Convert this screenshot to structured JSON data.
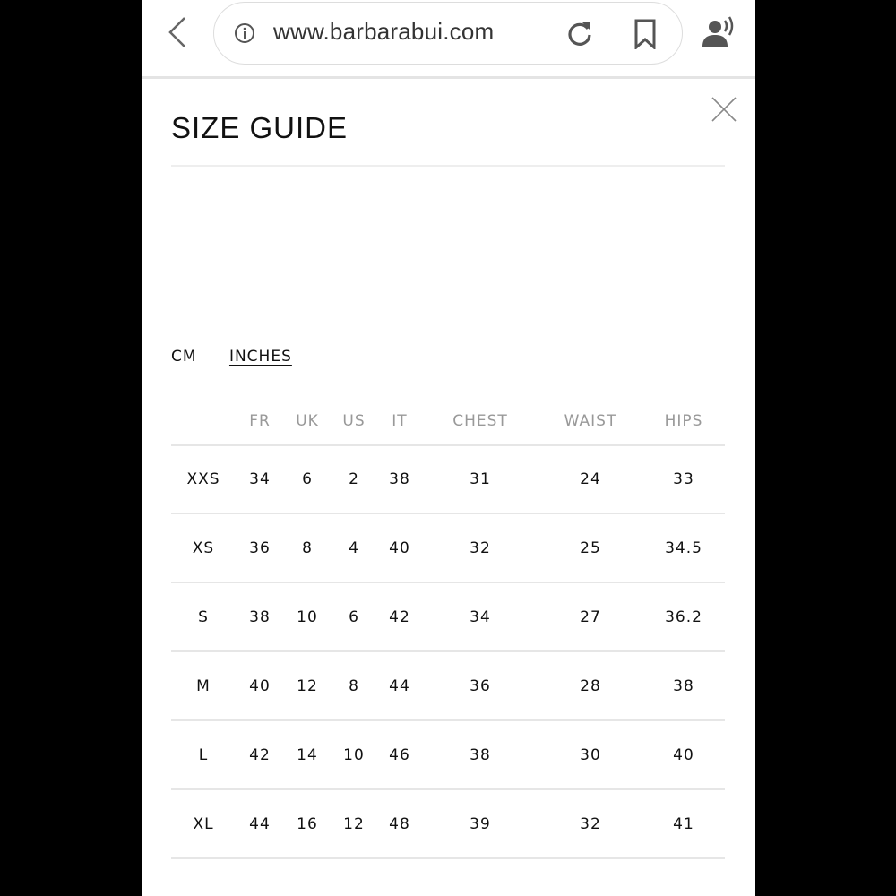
{
  "browser": {
    "url": "www.barbarabui.com",
    "icons": [
      "back-icon",
      "info-icon",
      "reload-icon",
      "bookmark-icon",
      "read-aloud-icon"
    ]
  },
  "modal": {
    "title": "SIZE GUIDE",
    "close_icon": "close-icon"
  },
  "units": {
    "cm": "CM",
    "inches": "INCHES",
    "selected": "INCHES"
  },
  "table": {
    "headers": [
      "",
      "FR",
      "UK",
      "US",
      "IT",
      "CHEST",
      "WAIST",
      "HIPS"
    ],
    "rows": [
      [
        "XXS",
        "34",
        "6",
        "2",
        "38",
        "31",
        "24",
        "33"
      ],
      [
        "XS",
        "36",
        "8",
        "4",
        "40",
        "32",
        "25",
        "34.5"
      ],
      [
        "S",
        "38",
        "10",
        "6",
        "42",
        "34",
        "27",
        "36.2"
      ],
      [
        "M",
        "40",
        "12",
        "8",
        "44",
        "36",
        "28",
        "38"
      ],
      [
        "L",
        "42",
        "14",
        "10",
        "46",
        "38",
        "30",
        "40"
      ],
      [
        "XL",
        "44",
        "16",
        "12",
        "48",
        "39",
        "32",
        "41"
      ]
    ]
  }
}
